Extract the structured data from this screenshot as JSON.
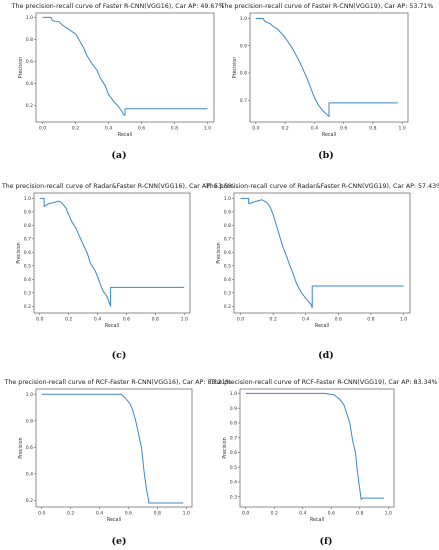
{
  "chart_data": [
    {
      "type": "line",
      "title": "The precision-recall curve of Faster R-CNN(VGG16), Car AP: 49.67%",
      "xlabel": "Recall",
      "ylabel": "Precision",
      "xlim": [
        -0.04,
        1.04
      ],
      "ylim": [
        0.05,
        1.04
      ],
      "xticks": [
        "0.0",
        "0.2",
        "0.4",
        "0.6",
        "0.8",
        "1.0"
      ],
      "yticks": [
        "0.2",
        "0.4",
        "0.6",
        "0.8",
        "1.0"
      ],
      "series": [
        {
          "x": [
            0.0,
            0.05,
            0.06,
            0.1,
            0.12,
            0.15,
            0.18,
            0.2,
            0.22,
            0.25,
            0.27,
            0.3,
            0.33,
            0.35,
            0.38,
            0.4,
            0.43,
            0.46,
            0.48,
            0.49,
            0.5,
            0.5,
            1.0
          ],
          "y": [
            1.0,
            1.0,
            0.97,
            0.96,
            0.93,
            0.9,
            0.87,
            0.85,
            0.8,
            0.72,
            0.65,
            0.58,
            0.52,
            0.45,
            0.38,
            0.3,
            0.24,
            0.19,
            0.15,
            0.12,
            0.11,
            0.17,
            0.17
          ]
        }
      ]
    },
    {
      "type": "line",
      "title": "The precision-recall curve of Faster R-CNN(VGG19), Car AP: 53.71%",
      "xlabel": "Recall",
      "ylabel": "Precision",
      "xlim": [
        -0.04,
        1.04
      ],
      "ylim": [
        0.62,
        1.02
      ],
      "xticks": [
        "0.0",
        "0.2",
        "0.4",
        "0.6",
        "0.8",
        "1.0"
      ],
      "yticks": [
        "0.7",
        "0.8",
        "0.9",
        "1.0"
      ],
      "series": [
        {
          "x": [
            0.0,
            0.05,
            0.06,
            0.1,
            0.12,
            0.15,
            0.2,
            0.25,
            0.3,
            0.35,
            0.4,
            0.43,
            0.46,
            0.48,
            0.5,
            0.5,
            0.97
          ],
          "y": [
            1.0,
            1.0,
            0.99,
            0.98,
            0.97,
            0.96,
            0.93,
            0.89,
            0.84,
            0.78,
            0.71,
            0.68,
            0.66,
            0.65,
            0.64,
            0.69,
            0.69
          ]
        }
      ]
    },
    {
      "type": "line",
      "title": "The precision-recall curve of Radar&Faster R-CNN(VGG16), Car AP: 53.5%",
      "xlabel": "Recall",
      "ylabel": "Precision",
      "xlim": [
        -0.04,
        1.04
      ],
      "ylim": [
        0.15,
        1.04
      ],
      "xticks": [
        "0.0",
        "0.2",
        "0.4",
        "0.6",
        "0.8",
        "1.0"
      ],
      "yticks": [
        "0.2",
        "0.3",
        "0.4",
        "0.5",
        "0.6",
        "0.7",
        "0.8",
        "0.9",
        "1.0"
      ],
      "series": [
        {
          "x": [
            0.0,
            0.03,
            0.03,
            0.06,
            0.1,
            0.13,
            0.15,
            0.18,
            0.2,
            0.22,
            0.25,
            0.27,
            0.3,
            0.33,
            0.35,
            0.38,
            0.4,
            0.42,
            0.44,
            0.46,
            0.47,
            0.48,
            0.49,
            0.49,
            1.0
          ],
          "y": [
            1.0,
            1.0,
            0.94,
            0.96,
            0.97,
            0.98,
            0.97,
            0.93,
            0.88,
            0.83,
            0.78,
            0.73,
            0.66,
            0.59,
            0.52,
            0.47,
            0.42,
            0.36,
            0.31,
            0.28,
            0.26,
            0.23,
            0.2,
            0.34,
            0.34
          ]
        }
      ]
    },
    {
      "type": "line",
      "title": "The precision-recall curve of Radar&Faster R-CNN(VGG19), Car AP: 57.43%",
      "xlabel": "Recall",
      "ylabel": "Precision",
      "xlim": [
        -0.04,
        1.04
      ],
      "ylim": [
        0.15,
        1.04
      ],
      "xticks": [
        "0.0",
        "0.2",
        "0.4",
        "0.6",
        "0.8",
        "1.0"
      ],
      "yticks": [
        "0.2",
        "0.3",
        "0.4",
        "0.5",
        "0.6",
        "0.7",
        "0.8",
        "0.9",
        "1.0"
      ],
      "series": [
        {
          "x": [
            0.0,
            0.05,
            0.05,
            0.1,
            0.13,
            0.16,
            0.18,
            0.2,
            0.22,
            0.24,
            0.26,
            0.28,
            0.3,
            0.32,
            0.34,
            0.36,
            0.38,
            0.4,
            0.42,
            0.43,
            0.44,
            0.44,
            1.0
          ],
          "y": [
            1.0,
            1.0,
            0.96,
            0.98,
            0.99,
            0.97,
            0.94,
            0.88,
            0.8,
            0.72,
            0.64,
            0.58,
            0.51,
            0.45,
            0.38,
            0.33,
            0.29,
            0.26,
            0.23,
            0.22,
            0.19,
            0.35,
            0.35
          ]
        }
      ]
    },
    {
      "type": "line",
      "title": "The precision-recall curve of RCF-Faster R-CNN(VGG16), Car AP: 83.21%",
      "xlabel": "Recall",
      "ylabel": "Precision",
      "xlim": [
        -0.04,
        1.04
      ],
      "ylim": [
        0.15,
        1.04
      ],
      "xticks": [
        "0.0",
        "0.2",
        "0.4",
        "0.6",
        "0.8",
        "1.0"
      ],
      "yticks": [
        "0.2",
        "0.4",
        "0.6",
        "0.8",
        "1.0"
      ],
      "series": [
        {
          "x": [
            0.0,
            0.55,
            0.58,
            0.61,
            0.63,
            0.65,
            0.67,
            0.69,
            0.7,
            0.71,
            0.72,
            0.73,
            0.74,
            0.74,
            0.98
          ],
          "y": [
            1.0,
            1.0,
            0.97,
            0.93,
            0.88,
            0.8,
            0.7,
            0.6,
            0.5,
            0.4,
            0.32,
            0.25,
            0.2,
            0.18,
            0.18
          ]
        }
      ]
    },
    {
      "type": "line",
      "title": "The precision-recall curve of RCF-Faster R-CNN(VGG19), Car AP: 83.34%",
      "xlabel": "Recall",
      "ylabel": "Precision",
      "xlim": [
        -0.04,
        1.04
      ],
      "ylim": [
        0.23,
        1.03
      ],
      "xticks": [
        "0.0",
        "0.2",
        "0.4",
        "0.6",
        "0.8",
        "1.0"
      ],
      "yticks": [
        "0.3",
        "0.4",
        "0.5",
        "0.6",
        "0.7",
        "0.8",
        "0.9",
        "1.0"
      ],
      "series": [
        {
          "x": [
            0.0,
            0.5,
            0.55,
            0.62,
            0.66,
            0.69,
            0.71,
            0.73,
            0.74,
            0.75,
            0.77,
            0.78,
            0.79,
            0.8,
            0.81,
            0.81,
            0.97
          ],
          "y": [
            1.0,
            1.0,
            1.0,
            0.99,
            0.96,
            0.92,
            0.86,
            0.8,
            0.74,
            0.68,
            0.6,
            0.5,
            0.42,
            0.35,
            0.28,
            0.29,
            0.29
          ]
        }
      ]
    }
  ],
  "captions": [
    "(a)",
    "(b)",
    "(c)",
    "(d)",
    "(e)",
    "(f)"
  ],
  "colors": {
    "curve": "#3b87c4",
    "axis": "#444444"
  }
}
